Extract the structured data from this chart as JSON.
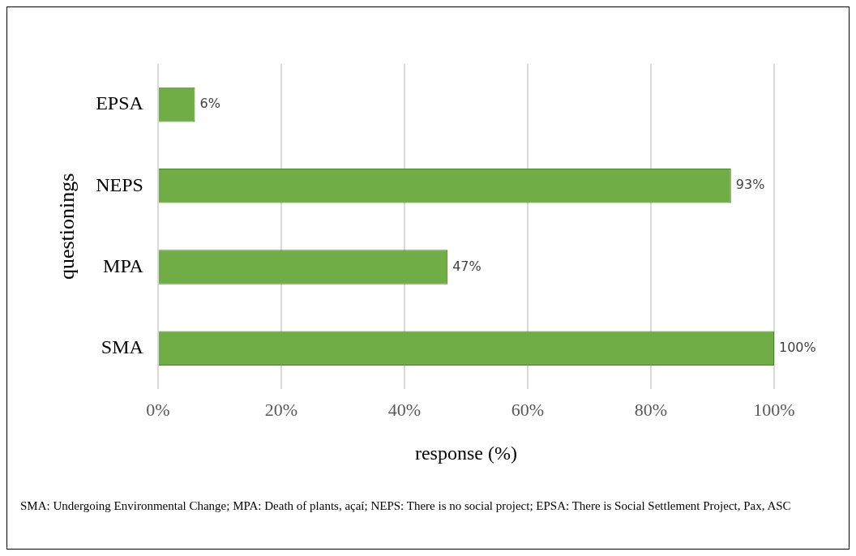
{
  "chart_data": {
    "type": "bar",
    "orientation": "horizontal",
    "xlabel": "response (%)",
    "ylabel": "questionings",
    "categories": [
      "EPSA",
      "NEPS",
      "MPA",
      "SMA"
    ],
    "values": [
      6,
      93,
      47,
      100
    ],
    "value_labels": [
      "6%",
      "93%",
      "47%",
      "100%"
    ],
    "color": "#70ad47",
    "xlim": [
      0,
      100
    ],
    "xticks": [
      {
        "value": 0,
        "label": "0%"
      },
      {
        "value": 20,
        "label": "20%"
      },
      {
        "value": 40,
        "label": "40%"
      },
      {
        "value": 60,
        "label": "60%"
      },
      {
        "value": 80,
        "label": "80%"
      },
      {
        "value": 100,
        "label": "100%"
      }
    ],
    "grid": "x",
    "legend": false,
    "annotations": [
      "SMA: Undergoing Environmental Change; MPA: Death of plants, açaí; NEPS: There is no social project; EPSA: There is Social Settlement Project, Pax, ASC"
    ]
  }
}
